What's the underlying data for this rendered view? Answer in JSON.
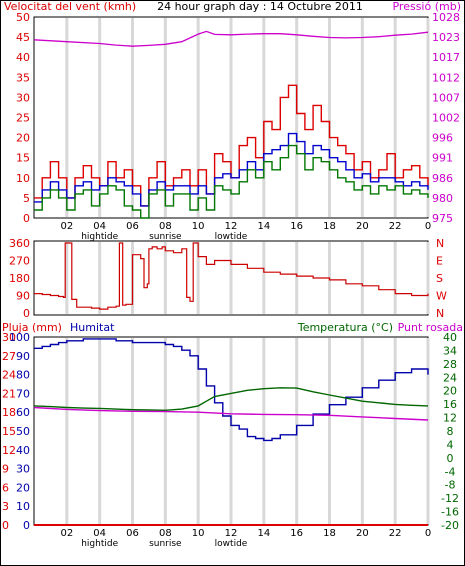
{
  "header": {
    "wind_title": "Velocitat del vent (kmh)",
    "graph_title": "24 hour graph day : 14 Octubre 2011",
    "pressure_title": "Pressió (mb)"
  },
  "lower": {
    "rain_title": "Pluja (mm)",
    "humidity_title": "Humitat",
    "temp_title": "Temperatura (°C)",
    "dew_title": "Punt rosada"
  },
  "time_labels": {
    "ticks": [
      "02",
      "04",
      "06",
      "08",
      "10",
      "12",
      "14",
      "16",
      "18",
      "20",
      "22",
      "0"
    ],
    "tick_hours": [
      2,
      4,
      6,
      8,
      10,
      12,
      14,
      16,
      18,
      20,
      22,
      24
    ],
    "events": [
      {
        "text": "hightide",
        "hour": 4
      },
      {
        "text": "sunrise",
        "hour": 8
      },
      {
        "text": "lowtide",
        "hour": 12
      }
    ]
  },
  "colors": {
    "wind_gust": "#dd0000",
    "wind_avg": "#0000cc",
    "wind_min": "#007700",
    "pressure": "#cc00cc",
    "direction": "#cc0000",
    "humidity": "#0000aa",
    "temperature": "#006600",
    "dew_point": "#cc00cc",
    "rain": "#dd0000",
    "grid": "#d8d8d8",
    "frame": "#000000"
  },
  "chart_data": [
    {
      "type": "line",
      "name": "wind-pressure",
      "x_unit": "hour",
      "xlim": [
        0,
        24
      ],
      "left_axis": {
        "label": "Velocitat del vent (kmh)",
        "ticks": [
          0,
          5,
          10,
          15,
          20,
          25,
          30,
          35,
          40,
          45,
          50
        ],
        "ylim": [
          0,
          50
        ]
      },
      "right_axis": {
        "label": "Pressió (mb)",
        "ticks": [
          975,
          980,
          986,
          991,
          996,
          1002,
          1007,
          1012,
          1017,
          1023,
          1028
        ],
        "ylim": [
          975,
          1028
        ]
      },
      "series": [
        {
          "key": "pressure",
          "axis": "right",
          "color": "#cc00cc",
          "x": [
            0,
            2,
            4,
            5,
            6,
            7,
            8,
            9,
            10,
            10.5,
            11,
            12,
            13,
            14,
            15,
            16,
            17,
            18,
            19,
            20,
            21,
            22,
            23,
            24
          ],
          "y": [
            1022,
            1021.5,
            1021,
            1020.6,
            1020.3,
            1020.5,
            1020.8,
            1021.5,
            1023.5,
            1024.2,
            1023.4,
            1023.3,
            1023.5,
            1023.6,
            1023.6,
            1023.3,
            1022.9,
            1022.6,
            1022.5,
            1022.6,
            1022.8,
            1023.2,
            1023.5,
            1024
          ]
        },
        {
          "key": "wind_gust",
          "axis": "left",
          "color": "#dd0000",
          "x": [
            0,
            0.5,
            1,
            1.5,
            2,
            2.5,
            3,
            3.5,
            4,
            4.5,
            5,
            5.5,
            6,
            6.5,
            7,
            7.5,
            8,
            8.5,
            9,
            9.5,
            10,
            10.5,
            11,
            11.5,
            12,
            12.5,
            13,
            13.5,
            14,
            14.5,
            15,
            15.5,
            16,
            16.5,
            17,
            17.5,
            18,
            18.5,
            19,
            19.5,
            20,
            20.5,
            21,
            21.5,
            22,
            22.5,
            23,
            23.5,
            24
          ],
          "y": [
            5,
            10,
            14,
            10,
            5,
            10,
            13,
            10,
            8,
            14,
            10,
            12,
            8,
            3,
            10,
            14,
            8,
            10,
            12,
            8,
            12,
            6,
            16,
            14,
            10,
            18,
            20,
            15,
            24,
            22,
            30,
            33,
            26,
            22,
            28,
            24,
            20,
            18,
            16,
            12,
            14,
            10,
            12,
            16,
            10,
            12,
            13,
            10,
            8
          ]
        },
        {
          "key": "wind_avg",
          "axis": "left",
          "color": "#0000cc",
          "x": [
            0,
            0.5,
            1,
            1.5,
            2,
            2.5,
            3,
            3.5,
            4,
            4.5,
            5,
            5.5,
            6,
            6.5,
            7,
            7.5,
            8,
            8.5,
            9,
            9.5,
            10,
            10.5,
            11,
            11.5,
            12,
            12.5,
            13,
            13.5,
            14,
            14.5,
            15,
            15.5,
            16,
            16.5,
            17,
            17.5,
            18,
            18.5,
            19,
            19.5,
            20,
            20.5,
            21,
            21.5,
            22,
            22.5,
            23,
            23.5,
            24
          ],
          "y": [
            4,
            7,
            9,
            7,
            5,
            8,
            9,
            7,
            8,
            10,
            9,
            8,
            6,
            3,
            7,
            9,
            7,
            8,
            8,
            6,
            8,
            6,
            10,
            11,
            10,
            12,
            14,
            12,
            16,
            17,
            18,
            21,
            19,
            16,
            18,
            17,
            15,
            14,
            12,
            10,
            11,
            9,
            10,
            10,
            9,
            8,
            9,
            8,
            7
          ]
        },
        {
          "key": "wind_min",
          "axis": "left",
          "color": "#007700",
          "x": [
            0,
            0.5,
            1,
            1.5,
            2,
            2.5,
            3,
            3.5,
            4,
            4.5,
            5,
            5.5,
            6,
            6.5,
            7,
            7.5,
            8,
            8.5,
            9,
            9.5,
            10,
            10.5,
            11,
            11.5,
            12,
            12.5,
            13,
            13.5,
            14,
            14.5,
            15,
            15.5,
            16,
            16.5,
            17,
            17.5,
            18,
            18.5,
            19,
            19.5,
            20,
            20.5,
            21,
            21.5,
            22,
            22.5,
            23,
            23.5,
            24
          ],
          "y": [
            2,
            5,
            7,
            5,
            2,
            6,
            7,
            3,
            6,
            8,
            7,
            3,
            2,
            0,
            6,
            7,
            3,
            6,
            6,
            2,
            5,
            2,
            8,
            7,
            6,
            9,
            12,
            10,
            14,
            12,
            15,
            18,
            16,
            12,
            15,
            14,
            12,
            10,
            9,
            7,
            8,
            6,
            8,
            7,
            8,
            6,
            7,
            6,
            5
          ]
        }
      ]
    },
    {
      "type": "line",
      "name": "wind-direction",
      "x_unit": "hour",
      "xlim": [
        0,
        24
      ],
      "left_axis": {
        "ticks": [
          0,
          90,
          180,
          270,
          360
        ],
        "ylim": [
          0,
          360
        ]
      },
      "right_axis": {
        "ticks": [
          "N",
          "W",
          "S",
          "E",
          "N"
        ]
      },
      "series": [
        {
          "key": "direction",
          "color": "#cc0000",
          "x": [
            0,
            0.5,
            1,
            1.5,
            1.8,
            1.9,
            2,
            2.3,
            2.6,
            3,
            3.5,
            4,
            4.5,
            5,
            5.2,
            5.4,
            5.6,
            6,
            6.5,
            6.7,
            6.9,
            7,
            7.2,
            7.5,
            7.8,
            8,
            8.5,
            9,
            9.3,
            9.5,
            9.7,
            10,
            10.5,
            11,
            12,
            13,
            14,
            15,
            16,
            17,
            18,
            19,
            20,
            21,
            22,
            23,
            24
          ],
          "y": [
            100,
            95,
            90,
            85,
            80,
            360,
            360,
            70,
            30,
            30,
            25,
            20,
            30,
            35,
            360,
            40,
            45,
            300,
            280,
            130,
            150,
            330,
            340,
            330,
            340,
            320,
            310,
            330,
            80,
            60,
            360,
            290,
            250,
            270,
            250,
            230,
            210,
            200,
            190,
            180,
            170,
            150,
            140,
            120,
            100,
            90,
            100
          ]
        }
      ]
    },
    {
      "type": "line",
      "name": "rain-humidity-temperature",
      "x_unit": "hour",
      "xlim": [
        0,
        24
      ],
      "left_axis_rain": {
        "label": "Pluja (mm)",
        "ticks": [
          0,
          3,
          6,
          9,
          12,
          15,
          18,
          21,
          24,
          27,
          30
        ],
        "ylim": [
          0,
          30
        ]
      },
      "left_axis_humidity": {
        "label": "Humitat",
        "ticks": [
          0,
          10,
          20,
          30,
          40,
          50,
          60,
          70,
          80,
          90,
          100
        ],
        "ylim": [
          0,
          100
        ]
      },
      "right_axis": {
        "label": "Temperatura (°C)",
        "ticks": [
          -20,
          -16,
          -12,
          -8,
          -4,
          0,
          4,
          8,
          12,
          16,
          20,
          24,
          28,
          34,
          40
        ],
        "ylim": [
          -20,
          40
        ]
      },
      "series": [
        {
          "key": "humidity",
          "axis": "humidity",
          "color": "#0000aa",
          "x": [
            0,
            0.5,
            1,
            1.5,
            2,
            3,
            4,
            5,
            6,
            7,
            8,
            8.5,
            9,
            9.5,
            10,
            10.5,
            11,
            11.5,
            12,
            12.5,
            13,
            13.5,
            14,
            14.5,
            15,
            16,
            17,
            18,
            19,
            20,
            21,
            22,
            23,
            24
          ],
          "y": [
            94,
            95,
            96,
            97,
            98,
            99,
            99,
            98,
            97,
            97,
            96,
            95,
            93,
            90,
            83,
            74,
            65,
            58,
            53,
            51,
            47,
            46,
            45,
            46,
            48,
            53,
            59,
            64,
            68,
            73,
            77,
            81,
            83,
            80
          ]
        },
        {
          "key": "temperature",
          "axis": "right",
          "color": "#006600",
          "x": [
            0,
            1,
            2,
            3,
            4,
            5,
            6,
            7,
            8,
            9,
            10,
            10.5,
            11,
            12,
            13,
            14,
            15,
            16,
            17,
            18,
            19,
            20,
            21,
            22,
            23,
            24
          ],
          "y": [
            18,
            17.8,
            17.5,
            17.3,
            17.2,
            17,
            16.8,
            16.7,
            16.6,
            17,
            18,
            19.5,
            21,
            22,
            23,
            23.5,
            23.8,
            23.7,
            22.5,
            21.5,
            20.5,
            19.5,
            19,
            18.5,
            18.2,
            18
          ]
        },
        {
          "key": "dew_point",
          "axis": "right",
          "color": "#cc00cc",
          "x": [
            0,
            2,
            4,
            6,
            8,
            10,
            12,
            14,
            16,
            18,
            20,
            22,
            24
          ],
          "y": [
            17.5,
            16.9,
            16.5,
            16.3,
            16.2,
            16,
            15.5,
            15.3,
            15.2,
            15,
            14.5,
            14,
            13.5
          ]
        },
        {
          "key": "rain",
          "axis": "rain",
          "color": "#dd0000",
          "x": [
            0,
            24
          ],
          "y": [
            0,
            0
          ]
        }
      ]
    }
  ]
}
